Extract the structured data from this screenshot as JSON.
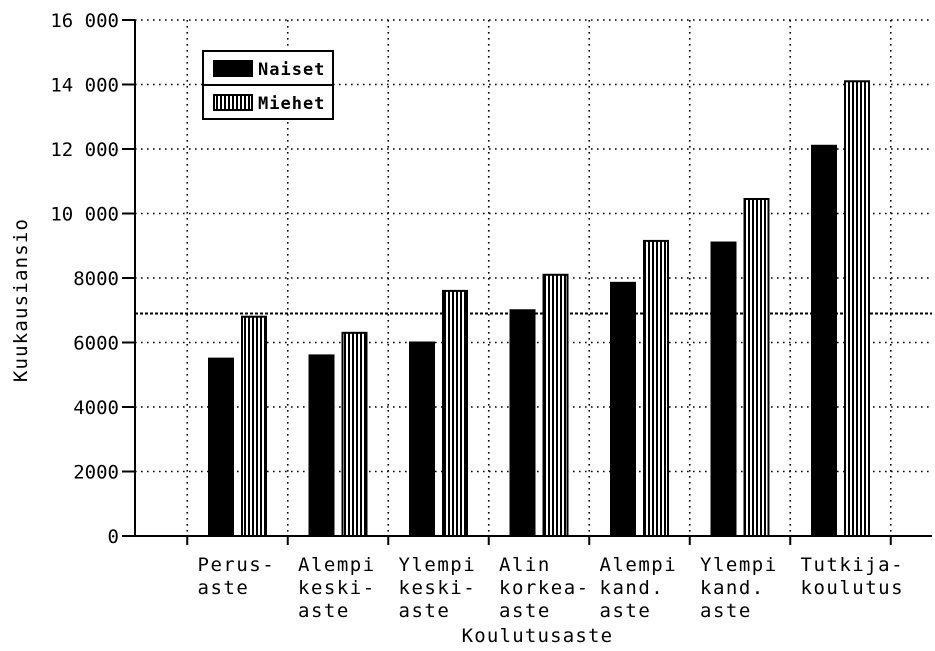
{
  "chart_data": {
    "type": "bar",
    "title": "",
    "xlabel": "Koulutusaste",
    "ylabel": "Kuukausiansio",
    "ylim": [
      0,
      16000
    ],
    "yticks": [
      {
        "value": 0,
        "label": "0"
      },
      {
        "value": 2000,
        "label": "2000"
      },
      {
        "value": 4000,
        "label": "4000"
      },
      {
        "value": 6000,
        "label": "6000"
      },
      {
        "value": 8000,
        "label": "8000"
      },
      {
        "value": 10000,
        "label": "10 000"
      },
      {
        "value": 12000,
        "label": "12 000"
      },
      {
        "value": 14000,
        "label": "14 000"
      },
      {
        "value": 16000,
        "label": "16 000"
      }
    ],
    "categories": [
      [
        "Perus-",
        "aste"
      ],
      [
        "Alempi",
        "keski-",
        "aste"
      ],
      [
        "Ylempi",
        "keski-",
        "aste"
      ],
      [
        "Alin",
        "korkea-",
        "aste"
      ],
      [
        "Alempi",
        "kand.",
        "aste"
      ],
      [
        "Ylempi",
        "kand.",
        "aste"
      ],
      [
        "Tutkija-",
        "koulutus"
      ]
    ],
    "series": [
      {
        "name": "Naiset",
        "values": [
          5500,
          5600,
          6000,
          7000,
          7850,
          9100,
          12100
        ],
        "color": "#000000",
        "pattern": "solid"
      },
      {
        "name": "Miehet",
        "values": [
          6800,
          6300,
          7600,
          8100,
          9150,
          10450,
          14100
        ],
        "color": "#000000",
        "pattern": "vertical-stripes"
      }
    ],
    "reference_line": {
      "value": 6900,
      "style": "dashed"
    },
    "grid": true,
    "legend_position": "top-left"
  }
}
